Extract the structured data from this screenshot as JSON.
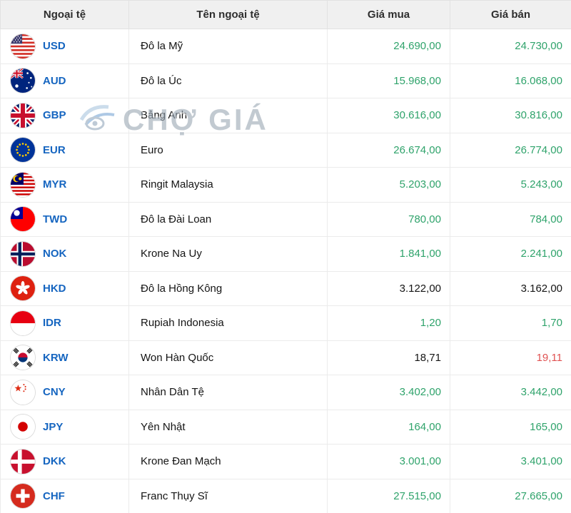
{
  "colors": {
    "price_up_green": "#2fa36b",
    "price_down_red": "#e05252",
    "price_neutral_black": "#151515",
    "currency_code_blue": "#1565c0",
    "header_background": "#f0f0f0"
  },
  "watermark": {
    "text": "CHỢ GIÁ",
    "logo_icon": "chogia-logo-icon"
  },
  "table": {
    "headers": [
      "Ngoại tệ",
      "Tên ngoại tệ",
      "Giá mua",
      "Giá bán"
    ],
    "rows": [
      {
        "code": "USD",
        "name": "Đô la Mỹ",
        "flag_icon": "us-flag-icon",
        "buy": "24.690,00",
        "sell": "24.730,00",
        "buy_color": "green",
        "sell_color": "green"
      },
      {
        "code": "AUD",
        "name": "Đô la Úc",
        "flag_icon": "australia-flag-icon",
        "buy": "15.968,00",
        "sell": "16.068,00",
        "buy_color": "green",
        "sell_color": "green"
      },
      {
        "code": "GBP",
        "name": "Bảng Anh",
        "flag_icon": "uk-flag-icon",
        "buy": "30.616,00",
        "sell": "30.816,00",
        "buy_color": "green",
        "sell_color": "green"
      },
      {
        "code": "EUR",
        "name": "Euro",
        "flag_icon": "eu-flag-icon",
        "buy": "26.674,00",
        "sell": "26.774,00",
        "buy_color": "green",
        "sell_color": "green"
      },
      {
        "code": "MYR",
        "name": "Ringit Malaysia",
        "flag_icon": "malaysia-flag-icon",
        "buy": "5.203,00",
        "sell": "5.243,00",
        "buy_color": "green",
        "sell_color": "green"
      },
      {
        "code": "TWD",
        "name": "Đô la Đài Loan",
        "flag_icon": "taiwan-flag-icon",
        "buy": "780,00",
        "sell": "784,00",
        "buy_color": "green",
        "sell_color": "green"
      },
      {
        "code": "NOK",
        "name": "Krone Na Uy",
        "flag_icon": "norway-flag-icon",
        "buy": "1.841,00",
        "sell": "2.241,00",
        "buy_color": "green",
        "sell_color": "green"
      },
      {
        "code": "HKD",
        "name": "Đô la Hồng Kông",
        "flag_icon": "hong-kong-flag-icon",
        "buy": "3.122,00",
        "sell": "3.162,00",
        "buy_color": "black",
        "sell_color": "black"
      },
      {
        "code": "IDR",
        "name": "Rupiah Indonesia",
        "flag_icon": "indonesia-flag-icon",
        "buy": "1,20",
        "sell": "1,70",
        "buy_color": "green",
        "sell_color": "green"
      },
      {
        "code": "KRW",
        "name": "Won Hàn Quốc",
        "flag_icon": "south-korea-flag-icon",
        "buy": "18,71",
        "sell": "19,11",
        "buy_color": "black",
        "sell_color": "red"
      },
      {
        "code": "CNY",
        "name": "Nhân Dân Tệ",
        "flag_icon": "china-flag-icon",
        "buy": "3.402,00",
        "sell": "3.442,00",
        "buy_color": "green",
        "sell_color": "green"
      },
      {
        "code": "JPY",
        "name": "Yên Nhật",
        "flag_icon": "japan-flag-icon",
        "buy": "164,00",
        "sell": "165,00",
        "buy_color": "green",
        "sell_color": "green"
      },
      {
        "code": "DKK",
        "name": "Krone Đan Mạch",
        "flag_icon": "denmark-flag-icon",
        "buy": "3.001,00",
        "sell": "3.401,00",
        "buy_color": "green",
        "sell_color": "green"
      },
      {
        "code": "CHF",
        "name": "Franc Thụy Sĩ",
        "flag_icon": "switzerland-flag-icon",
        "buy": "27.515,00",
        "sell": "27.665,00",
        "buy_color": "green",
        "sell_color": "green"
      }
    ]
  }
}
